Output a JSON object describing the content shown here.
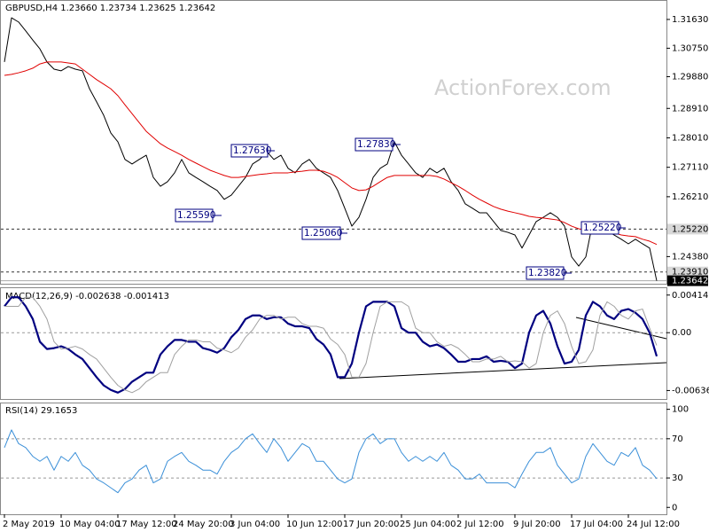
{
  "chart_data": [
    {
      "type": "line",
      "title": "GBPUSD,H4  1.23660 1.23734 1.23625 1.23642",
      "watermark": "ActionForex.com",
      "categories": [
        "2 May 2019",
        null,
        null,
        null,
        null,
        null,
        null,
        null,
        "10 May 04:00",
        null,
        null,
        null,
        null,
        null,
        null,
        null,
        "17 May 12:00",
        null,
        null,
        null,
        null,
        null,
        null,
        null,
        "24 May 20:00",
        null,
        null,
        null,
        null,
        null,
        null,
        null,
        "3 Jun 04:00",
        null,
        null,
        null,
        null,
        null,
        null,
        null,
        "10 Jun 12:00",
        null,
        null,
        null,
        null,
        null,
        null,
        null,
        "17 Jun 20:00",
        null,
        null,
        null,
        null,
        null,
        null,
        null,
        "25 Jun 04:00",
        null,
        null,
        null,
        null,
        null,
        null,
        null,
        "2 Jul 12:00",
        null,
        null,
        null,
        null,
        null,
        null,
        null,
        "9 Jul 20:00",
        null,
        null,
        null,
        null,
        null,
        null,
        null,
        "17 Jul 04:00",
        null,
        null,
        null,
        null,
        null,
        null,
        null,
        "24 Jul 12:00",
        null,
        null,
        null,
        null
      ],
      "series": [
        {
          "color": "#000000",
          "values": [
            1.3033,
            1.3168,
            1.3155,
            1.3128,
            1.31,
            1.3073,
            1.3033,
            1.3011,
            1.3006,
            1.3019,
            1.3011,
            1.3006,
            1.2951,
            1.2911,
            1.287,
            1.2816,
            1.2789,
            1.2735,
            1.2721,
            1.2735,
            1.2748,
            1.268,
            1.2653,
            1.2667,
            1.2694,
            1.2735,
            1.2694,
            1.268,
            1.2667,
            1.2653,
            1.264,
            1.2613,
            1.2626,
            1.2653,
            1.268,
            1.2721,
            1.2735,
            1.2759,
            1.2735,
            1.2748,
            1.2708,
            1.2694,
            1.2721,
            1.2735,
            1.2708,
            1.2694,
            1.268,
            1.264,
            1.2586,
            1.2531,
            1.2558,
            1.2613,
            1.268,
            1.2708,
            1.2721,
            1.2789,
            1.2748,
            1.2721,
            1.2694,
            1.268,
            1.2708,
            1.2694,
            1.2708,
            1.2667,
            1.264,
            1.2599,
            1.2586,
            1.2572,
            1.2572,
            1.2545,
            1.2518,
            1.2512,
            1.2504,
            1.2464,
            1.2504,
            1.2545,
            1.2558,
            1.2572,
            1.2558,
            1.2531,
            1.2437,
            1.2409,
            1.2437,
            1.2545,
            1.2531,
            1.2518,
            1.2504,
            1.2491,
            1.2477,
            1.2491,
            1.2477,
            1.2464,
            1.2364
          ]
        },
        {
          "color": "#e00000",
          "values": [
            1.2992,
            1.2995,
            1.3,
            1.3006,
            1.3014,
            1.3027,
            1.3033,
            1.3033,
            1.3033,
            1.303,
            1.3027,
            1.3011,
            1.2995,
            1.2979,
            1.2965,
            1.2951,
            1.293,
            1.2902,
            1.2875,
            1.2848,
            1.2821,
            1.2802,
            1.2783,
            1.277,
            1.2759,
            1.2748,
            1.2735,
            1.2724,
            1.2713,
            1.2702,
            1.2694,
            1.2686,
            1.268,
            1.268,
            1.2683,
            1.2686,
            1.2689,
            1.2691,
            1.2694,
            1.2694,
            1.2694,
            1.2697,
            1.2699,
            1.2702,
            1.2702,
            1.2699,
            1.2691,
            1.268,
            1.2664,
            1.2648,
            1.264,
            1.2642,
            1.2653,
            1.2667,
            1.268,
            1.2686,
            1.2686,
            1.2686,
            1.2686,
            1.2686,
            1.2686,
            1.2683,
            1.2675,
            1.2664,
            1.2653,
            1.264,
            1.2626,
            1.2613,
            1.2602,
            1.2591,
            1.2583,
            1.2577,
            1.2572,
            1.2567,
            1.2561,
            1.2558,
            1.2556,
            1.2553,
            1.255,
            1.2542,
            1.2531,
            1.2523,
            1.2518,
            1.2515,
            1.2515,
            1.2512,
            1.251,
            1.2504,
            1.2501,
            1.2499,
            1.2491,
            1.2485,
            1.2475
          ]
        }
      ],
      "ylim": [
        1.2355,
        1.3217
      ],
      "yticks": [
        {
          "value": 1.3163,
          "label": "1.31630"
        },
        {
          "value": 1.3075,
          "label": "1.30750"
        },
        {
          "value": 1.2988,
          "label": "1.29880"
        },
        {
          "value": 1.2891,
          "label": "1.28910"
        },
        {
          "value": 1.2801,
          "label": "1.28010"
        },
        {
          "value": 1.2711,
          "label": "1.27110"
        },
        {
          "value": 1.2621,
          "label": "1.26210"
        },
        {
          "value": 1.2438,
          "label": "1.24380"
        }
      ],
      "levels": [
        {
          "value": 1.2522,
          "label": "1.25220"
        },
        {
          "value": 1.2391,
          "label": "1.23910"
        }
      ],
      "current": {
        "value": 1.23642,
        "label": "1.23642"
      },
      "annotations": [
        "1.27630",
        "1.25590",
        "1.25060",
        "1.27830",
        "1.25220",
        "1.23820"
      ]
    },
    {
      "type": "line",
      "title": "MACD(12,26,9) -0.002638 -0.001413",
      "series": [
        {
          "color": "#000080",
          "values": [
            0.0029,
            0.0039,
            0.0039,
            0.0029,
            0.0015,
            -0.001,
            -0.0018,
            -0.0017,
            -0.0015,
            -0.0018,
            -0.0024,
            -0.0029,
            -0.0039,
            -0.0049,
            -0.0058,
            -0.0063,
            -0.0066,
            -0.0062,
            -0.0054,
            -0.0049,
            -0.0044,
            -0.0044,
            -0.0024,
            -0.0015,
            -0.0008,
            -0.0008,
            -0.001,
            -0.001,
            -0.0017,
            -0.0019,
            -0.0022,
            -0.0017,
            -0.0005,
            0.0003,
            0.0015,
            0.0019,
            0.0019,
            0.0015,
            0.0017,
            0.0017,
            0.001,
            0.0007,
            0.0007,
            0.0005,
            -0.0007,
            -0.0013,
            -0.0024,
            -0.0049,
            -0.0049,
            -0.0034,
            0,
            0.0029,
            0.0034,
            0.0034,
            0.0034,
            0.0029,
            0.0005,
            0,
            0,
            -0.001,
            -0.0015,
            -0.0013,
            -0.0017,
            -0.0024,
            -0.0032,
            -0.0032,
            -0.0029,
            -0.0029,
            -0.0026,
            -0.0032,
            -0.0031,
            -0.0032,
            -0.0039,
            -0.0034,
            0,
            0.0019,
            0.0024,
            0.001,
            -0.0015,
            -0.0034,
            -0.0032,
            -0.0019,
            0.0019,
            0.0034,
            0.0029,
            0.0019,
            0.0015,
            0.0024,
            0.0026,
            0.0022,
            0.0015,
            0,
            -0.0026
          ]
        },
        {
          "color": "#a0a0a0",
          "values": [
            0.0029,
            0.0029,
            0.0029,
            0.0039,
            0.0039,
            0.0029,
            0.0015,
            -0.001,
            -0.0018,
            -0.0017,
            -0.0015,
            -0.0018,
            -0.0024,
            -0.0029,
            -0.0039,
            -0.0049,
            -0.0058,
            -0.0063,
            -0.0066,
            -0.0062,
            -0.0054,
            -0.0049,
            -0.0044,
            -0.0044,
            -0.0024,
            -0.0015,
            -0.0008,
            -0.0008,
            -0.001,
            -0.001,
            -0.0017,
            -0.0019,
            -0.0022,
            -0.0017,
            -0.0005,
            0.0003,
            0.0015,
            0.0019,
            0.0019,
            0.0015,
            0.0017,
            0.0017,
            0.001,
            0.0007,
            0.0007,
            0.0005,
            -0.0007,
            -0.0013,
            -0.0024,
            -0.0049,
            -0.0049,
            -0.0034,
            0,
            0.0029,
            0.0034,
            0.0034,
            0.0034,
            0.0029,
            0.0005,
            0,
            0,
            -0.001,
            -0.0015,
            -0.0013,
            -0.0017,
            -0.0024,
            -0.0032,
            -0.0032,
            -0.0029,
            -0.0029,
            -0.0026,
            -0.0032,
            -0.0031,
            -0.0032,
            -0.0039,
            -0.0034,
            0,
            0.0019,
            0.0024,
            0.001,
            -0.0015,
            -0.0034,
            -0.0032,
            -0.0019,
            0.0019,
            0.0034,
            0.0029,
            0.0019,
            0.0015,
            0.0024,
            0.0026,
            0.0005,
            -0.0014
          ]
        }
      ],
      "ylim": [
        -0.0073,
        0.0049
      ],
      "yticks": [
        0.004141,
        {
          "value": 0,
          "label": "0.00"
        },
        -0.006365
      ],
      "gridlines": [
        0
      ]
    },
    {
      "type": "line",
      "title": "RSI(14) 29.1653",
      "series": [
        {
          "color": "#3a8fd8",
          "values": [
            61,
            79,
            65,
            61,
            52,
            47,
            52,
            38,
            52,
            47,
            56,
            43,
            38,
            29,
            25,
            20,
            15,
            25,
            29,
            38,
            43,
            25,
            29,
            47,
            52,
            56,
            47,
            43,
            38,
            38,
            34,
            47,
            56,
            61,
            70,
            75,
            65,
            56,
            70,
            61,
            47,
            56,
            65,
            61,
            47,
            47,
            38,
            29,
            25,
            29,
            56,
            70,
            75,
            65,
            70,
            70,
            56,
            47,
            52,
            47,
            52,
            47,
            56,
            43,
            38,
            29,
            29,
            34,
            25,
            25,
            25,
            25,
            20,
            34,
            47,
            56,
            56,
            61,
            43,
            34,
            25,
            29,
            52,
            65,
            56,
            47,
            43,
            56,
            52,
            61,
            43,
            38,
            29.2
          ]
        }
      ],
      "ylim": [
        -7,
        106
      ],
      "yticks": [
        100,
        70,
        30,
        0
      ],
      "gridlines": [
        70,
        30
      ]
    }
  ]
}
